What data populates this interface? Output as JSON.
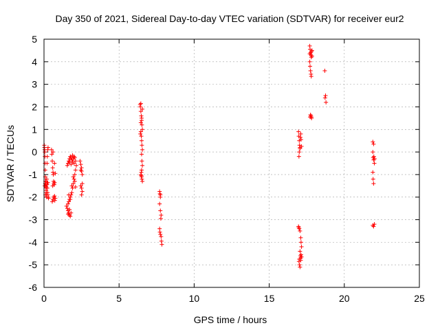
{
  "chart_data": {
    "type": "scatter",
    "title": "Day 350 of 2021, Sidereal Day-to-day VTEC variation (SDTVAR) for receiver eur2",
    "xlabel": "GPS time / hours",
    "ylabel": "SDTVAR / TECUs",
    "xlim": [
      0,
      25
    ],
    "ylim": [
      -6,
      5
    ],
    "xticks": [
      0,
      5,
      10,
      15,
      20,
      25
    ],
    "yticks": [
      -6,
      -5,
      -4,
      -3,
      -2,
      -1,
      0,
      1,
      2,
      3,
      4,
      5
    ],
    "grid": true,
    "marker": "+",
    "series_color": "#ff0000",
    "series": [
      {
        "name": "SDTVAR",
        "points": [
          [
            0.02,
            0.3
          ],
          [
            0.03,
            0.2
          ],
          [
            0.04,
            0.1
          ],
          [
            0.05,
            0.0
          ],
          [
            0.06,
            -0.2
          ],
          [
            0.07,
            -0.5
          ],
          [
            0.08,
            -0.8
          ],
          [
            0.09,
            -1.1
          ],
          [
            0.1,
            -1.3
          ],
          [
            0.11,
            -1.4
          ],
          [
            0.12,
            -1.5
          ],
          [
            0.13,
            -1.6
          ],
          [
            0.14,
            -1.7
          ],
          [
            0.15,
            -1.8
          ],
          [
            0.16,
            -1.9
          ],
          [
            0.17,
            -2.0
          ],
          [
            0.05,
            -1.5
          ],
          [
            0.08,
            -1.4
          ],
          [
            0.12,
            -1.3
          ],
          [
            0.18,
            -1.2
          ],
          [
            0.2,
            -1.4
          ],
          [
            0.22,
            -1.6
          ],
          [
            0.24,
            -1.8
          ],
          [
            0.26,
            -1.9
          ],
          [
            0.28,
            -2.0
          ],
          [
            0.3,
            -2.05
          ],
          [
            0.2,
            -0.5
          ],
          [
            0.22,
            -0.2
          ],
          [
            0.25,
            0.1
          ],
          [
            0.27,
            0.2
          ],
          [
            0.1,
            -1.9
          ],
          [
            0.15,
            -1.55
          ],
          [
            0.2,
            -1.45
          ],
          [
            0.25,
            -1.35
          ],
          [
            0.5,
            0.1
          ],
          [
            0.52,
            -0.1
          ],
          [
            0.55,
            -0.4
          ],
          [
            0.58,
            -0.7
          ],
          [
            0.6,
            -0.9
          ],
          [
            0.62,
            -1.0
          ],
          [
            0.64,
            -1.3
          ],
          [
            0.66,
            -1.4
          ],
          [
            0.68,
            -1.45
          ],
          [
            0.7,
            -1.35
          ],
          [
            0.55,
            -2.2
          ],
          [
            0.6,
            -2.1
          ],
          [
            0.65,
            -2.0
          ],
          [
            0.7,
            -1.95
          ],
          [
            0.75,
            -2.05
          ],
          [
            0.6,
            0.0
          ],
          [
            0.7,
            -0.5
          ],
          [
            0.75,
            -0.95
          ],
          [
            0.58,
            -1.5
          ],
          [
            0.72,
            -2.15
          ],
          [
            1.5,
            -2.4
          ],
          [
            1.55,
            -2.5
          ],
          [
            1.6,
            -2.6
          ],
          [
            1.65,
            -2.7
          ],
          [
            1.7,
            -2.8
          ],
          [
            1.75,
            -2.85
          ],
          [
            1.8,
            -2.7
          ],
          [
            1.6,
            -2.3
          ],
          [
            1.65,
            -2.2
          ],
          [
            1.7,
            -2.1
          ],
          [
            1.75,
            -2.0
          ],
          [
            1.8,
            -1.9
          ],
          [
            1.85,
            -1.8
          ],
          [
            1.9,
            -1.6
          ],
          [
            1.95,
            -1.4
          ],
          [
            2.0,
            -1.2
          ],
          [
            2.05,
            -1.0
          ],
          [
            2.1,
            -0.8
          ],
          [
            1.55,
            -0.6
          ],
          [
            1.6,
            -0.5
          ],
          [
            1.65,
            -0.4
          ],
          [
            1.7,
            -0.3
          ],
          [
            1.75,
            -0.2
          ],
          [
            1.8,
            -0.25
          ],
          [
            1.85,
            -0.35
          ],
          [
            1.9,
            -0.45
          ],
          [
            1.95,
            -0.3
          ],
          [
            2.0,
            -0.2
          ],
          [
            2.05,
            -0.25
          ],
          [
            2.1,
            -0.4
          ],
          [
            2.15,
            -0.6
          ],
          [
            1.7,
            -0.45
          ],
          [
            1.8,
            -0.55
          ],
          [
            1.9,
            -0.15
          ],
          [
            2.0,
            -0.5
          ],
          [
            1.65,
            -1.9
          ],
          [
            1.75,
            -2.1
          ],
          [
            1.85,
            -1.5
          ],
          [
            1.95,
            -1.1
          ],
          [
            2.05,
            -1.3
          ],
          [
            2.1,
            -1.55
          ],
          [
            1.7,
            -2.55
          ],
          [
            1.6,
            -2.75
          ],
          [
            2.4,
            -0.4
          ],
          [
            2.45,
            -0.55
          ],
          [
            2.5,
            -0.7
          ],
          [
            2.5,
            -0.85
          ],
          [
            2.55,
            -1.0
          ],
          [
            2.45,
            -1.5
          ],
          [
            2.5,
            -1.6
          ],
          [
            2.55,
            -1.75
          ],
          [
            2.5,
            -1.9
          ],
          [
            2.45,
            -0.8
          ],
          [
            2.55,
            -1.4
          ],
          [
            6.4,
            2.1
          ],
          [
            6.42,
            2.0
          ],
          [
            6.45,
            1.8
          ],
          [
            6.48,
            1.6
          ],
          [
            6.5,
            1.4
          ],
          [
            6.52,
            1.2
          ],
          [
            6.55,
            1.0
          ],
          [
            6.45,
            0.9
          ],
          [
            6.48,
            0.7
          ],
          [
            6.5,
            0.5
          ],
          [
            6.52,
            0.3
          ],
          [
            6.55,
            0.1
          ],
          [
            6.5,
            -0.1
          ],
          [
            6.52,
            -0.4
          ],
          [
            6.55,
            -0.6
          ],
          [
            6.5,
            -0.8
          ],
          [
            6.48,
            -0.9
          ],
          [
            6.45,
            -1.0
          ],
          [
            6.5,
            -1.1
          ],
          [
            6.52,
            -1.2
          ],
          [
            6.55,
            -1.3
          ],
          [
            6.45,
            1.3
          ],
          [
            6.5,
            1.5
          ],
          [
            6.55,
            1.9
          ],
          [
            6.45,
            2.15
          ],
          [
            6.42,
            0.8
          ],
          [
            6.48,
            -1.05
          ],
          [
            7.7,
            -1.75
          ],
          [
            7.72,
            -1.85
          ],
          [
            7.75,
            -2.0
          ],
          [
            7.7,
            -2.3
          ],
          [
            7.75,
            -2.6
          ],
          [
            7.8,
            -2.8
          ],
          [
            7.78,
            -2.95
          ],
          [
            7.7,
            -3.4
          ],
          [
            7.72,
            -3.55
          ],
          [
            7.75,
            -3.65
          ],
          [
            7.8,
            -3.75
          ],
          [
            7.82,
            -3.95
          ],
          [
            7.85,
            -4.1
          ],
          [
            7.75,
            -1.9
          ],
          [
            16.95,
            0.9
          ],
          [
            16.97,
            0.7
          ],
          [
            17.0,
            0.5
          ],
          [
            17.02,
            0.3
          ],
          [
            17.05,
            0.2
          ],
          [
            17.0,
            0.0
          ],
          [
            16.98,
            -0.2
          ],
          [
            17.08,
            0.65
          ],
          [
            17.1,
            0.8
          ],
          [
            17.12,
            0.55
          ],
          [
            17.15,
            0.25
          ],
          [
            17.05,
            0.15
          ],
          [
            16.95,
            -3.3
          ],
          [
            17.0,
            -3.4
          ],
          [
            17.05,
            -3.5
          ],
          [
            17.1,
            -3.8
          ],
          [
            17.12,
            -4.0
          ],
          [
            17.15,
            -4.2
          ],
          [
            17.05,
            -4.4
          ],
          [
            17.08,
            -4.6
          ],
          [
            17.1,
            -4.7
          ],
          [
            17.0,
            -4.75
          ],
          [
            16.98,
            -4.85
          ],
          [
            17.02,
            -5.0
          ],
          [
            17.05,
            -5.1
          ],
          [
            17.1,
            -4.8
          ],
          [
            17.15,
            -4.65
          ],
          [
            16.97,
            -3.35
          ],
          [
            17.12,
            -4.55
          ],
          [
            17.7,
            4.7
          ],
          [
            17.72,
            4.55
          ],
          [
            17.75,
            4.4
          ],
          [
            17.78,
            4.3
          ],
          [
            17.8,
            4.2
          ],
          [
            17.7,
            4.0
          ],
          [
            17.72,
            3.8
          ],
          [
            17.75,
            3.6
          ],
          [
            17.78,
            3.45
          ],
          [
            17.8,
            3.35
          ],
          [
            17.85,
            4.5
          ],
          [
            17.82,
            4.45
          ],
          [
            17.7,
            4.35
          ],
          [
            17.75,
            1.65
          ],
          [
            17.78,
            1.6
          ],
          [
            17.8,
            1.55
          ],
          [
            17.82,
            1.5
          ],
          [
            17.72,
            1.55
          ],
          [
            17.85,
            4.25
          ],
          [
            18.7,
            3.6
          ],
          [
            18.75,
            2.5
          ],
          [
            18.72,
            2.4
          ],
          [
            18.78,
            2.2
          ],
          [
            21.9,
            0.45
          ],
          [
            21.95,
            0.35
          ],
          [
            21.9,
            0.0
          ],
          [
            21.92,
            -0.25
          ],
          [
            21.95,
            -0.35
          ],
          [
            22.0,
            -0.5
          ],
          [
            22.02,
            -0.3
          ],
          [
            21.9,
            -0.9
          ],
          [
            21.92,
            -1.2
          ],
          [
            21.95,
            -1.4
          ],
          [
            21.9,
            -3.25
          ],
          [
            21.95,
            -3.3
          ],
          [
            22.0,
            -3.2
          ],
          [
            21.97,
            -0.2
          ]
        ]
      }
    ]
  }
}
